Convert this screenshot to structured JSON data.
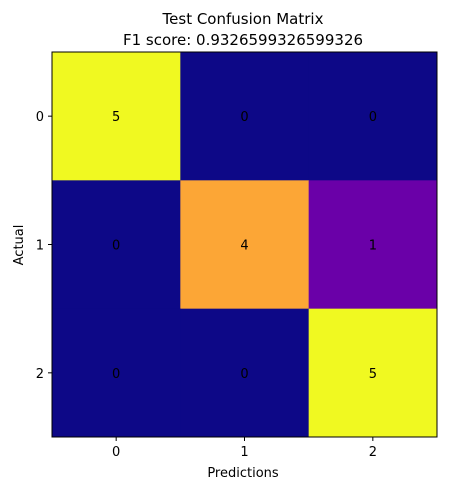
{
  "chart_data": {
    "type": "heatmap",
    "title": "Test Confusion Matrix",
    "subtitle": "F1 score: 0.9326599326599326",
    "xlabel": "Predictions",
    "ylabel": "Actual",
    "x_tick_labels": [
      "0",
      "1",
      "2"
    ],
    "y_tick_labels": [
      "0",
      "1",
      "2"
    ],
    "matrix": [
      [
        5,
        0,
        0
      ],
      [
        0,
        4,
        1
      ],
      [
        0,
        0,
        5
      ]
    ],
    "value_range": [
      0,
      5
    ],
    "colormap": "plasma",
    "grid": false,
    "legend": "none"
  }
}
